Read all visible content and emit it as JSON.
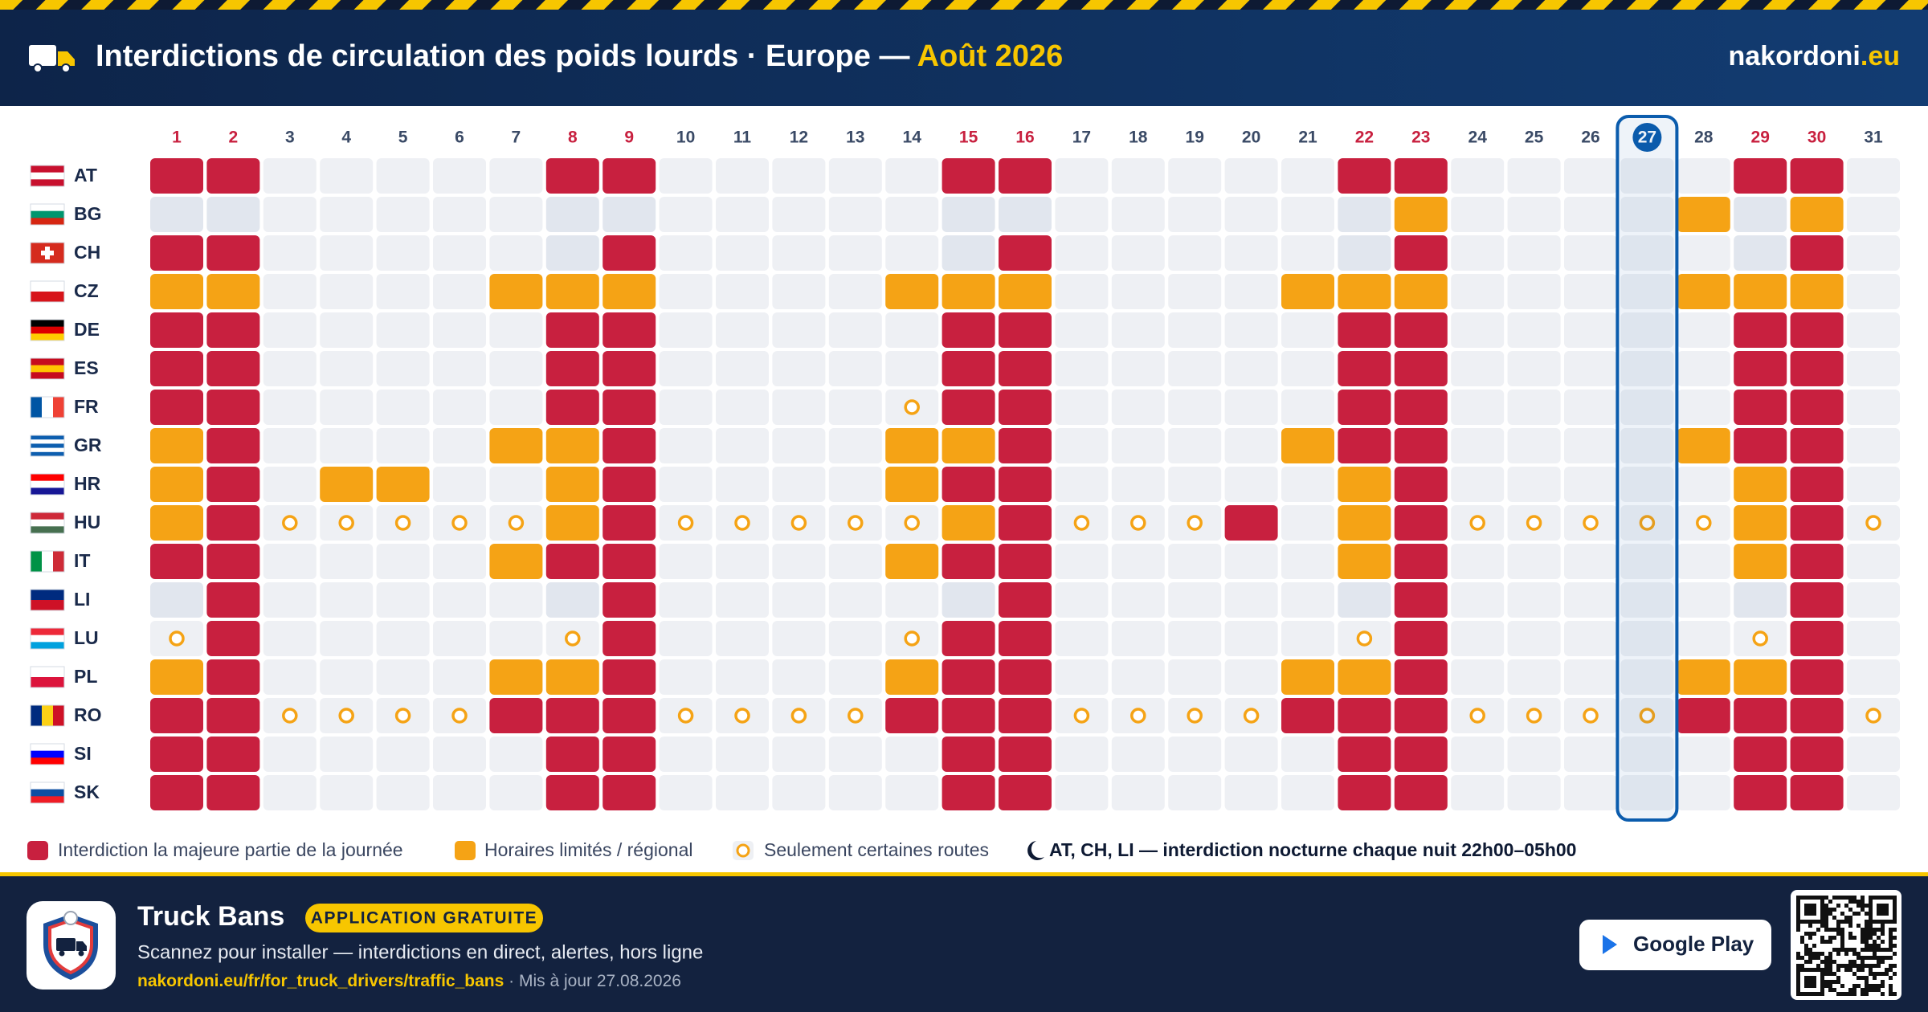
{
  "header": {
    "title": "Interdictions de circulation des poids lourds · Europe —",
    "title_highlight": "Août 2026",
    "brand": "nakordoni",
    "brand_suffix": ".eu"
  },
  "calendar": {
    "days": [
      1,
      2,
      3,
      4,
      5,
      6,
      7,
      8,
      9,
      10,
      11,
      12,
      13,
      14,
      15,
      16,
      17,
      18,
      19,
      20,
      21,
      22,
      23,
      24,
      25,
      26,
      27,
      28,
      29,
      30,
      31
    ],
    "weekend_days": [
      1,
      2,
      8,
      9,
      15,
      16,
      22,
      23,
      29,
      30
    ],
    "today": 27,
    "colors": {
      "R": "#c8203f",
      "O": "#f5a315",
      "s": "#e1e6ee",
      ".": "#eef0f4",
      "ring": "#f5a315",
      "today": "#0b5cad"
    },
    "rows": [
      {
        "code": "AT",
        "flag": [
          "#c8102e",
          "#ffffff",
          "#c8102e"
        ],
        "flag_dir": "h",
        "cells": "RR.....RR.....RR.....RR.....RR."
      },
      {
        "code": "BG",
        "flag": [
          "#ffffff",
          "#00966e",
          "#d62612"
        ],
        "flag_dir": "h",
        "cells": "ss.....ss.....ss.....sO....OsO."
      },
      {
        "code": "CH",
        "flag": [
          "#d52b1e"
        ],
        "flag_dir": "h",
        "cells": "RR.....sR.....sR.....sR.....sR."
      },
      {
        "code": "CZ",
        "flag": [
          "#ffffff",
          "#d7141a"
        ],
        "flag_dir": "h",
        "cells": "OO....OOO....OOO....OOO....OOO."
      },
      {
        "code": "DE",
        "flag": [
          "#000000",
          "#dd0000",
          "#ffce00"
        ],
        "flag_dir": "h",
        "cells": "RR.....RR.....RR.....RR.....RR."
      },
      {
        "code": "ES",
        "flag": [
          "#c60b1e",
          "#ffc400",
          "#c60b1e"
        ],
        "flag_dir": "h",
        "cells": "RR.....RR.....RR.....RR.....RR."
      },
      {
        "code": "FR",
        "flag": [
          "#0055a4",
          "#ffffff",
          "#ef4135"
        ],
        "flag_dir": "v",
        "cells": "RR.....RR....oRR.....RR.....RR."
      },
      {
        "code": "GR",
        "flag": [
          "#0d5eaf",
          "#ffffff",
          "#0d5eaf",
          "#ffffff",
          "#0d5eaf"
        ],
        "flag_dir": "h",
        "cells": "OR....OOR....OOR....ORR....ORR."
      },
      {
        "code": "HR",
        "flag": [
          "#ff0000",
          "#ffffff",
          "#171796"
        ],
        "flag_dir": "h",
        "cells": "OR.OO..OR....ORR.....OR.....OR."
      },
      {
        "code": "HU",
        "flag": [
          "#ce2939",
          "#ffffff",
          "#477050"
        ],
        "flag_dir": "h",
        "cells": "ORoooooORoooooORoooR.ORoooooORo"
      },
      {
        "code": "IT",
        "flag": [
          "#009246",
          "#ffffff",
          "#ce2b37"
        ],
        "flag_dir": "v",
        "cells": "RR....ORR....ORR.....OR.....OR."
      },
      {
        "code": "LI",
        "flag": [
          "#002b7f",
          "#ce1126"
        ],
        "flag_dir": "h",
        "cells": "sR.....sR.....sR.....sR.....sR."
      },
      {
        "code": "LU",
        "flag": [
          "#ed2939",
          "#ffffff",
          "#00a1de"
        ],
        "flag_dir": "h",
        "cells": "oR.....oR....oRR.....oR.....oR."
      },
      {
        "code": "PL",
        "flag": [
          "#ffffff",
          "#dc143c"
        ],
        "flag_dir": "h",
        "cells": "OR....OOR....ORR....OOR....OOR."
      },
      {
        "code": "RO",
        "flag": [
          "#002b7f",
          "#fcd116",
          "#ce1126"
        ],
        "flag_dir": "v",
        "cells": "RRooooRRRooooRRRooooRRRooooRRRo"
      },
      {
        "code": "SI",
        "flag": [
          "#ffffff",
          "#0000ff",
          "#ff0000"
        ],
        "flag_dir": "h",
        "cells": "RR.....RR.....RR.....RR.....RR."
      },
      {
        "code": "SK",
        "flag": [
          "#ffffff",
          "#0b4ea2",
          "#ee1c25"
        ],
        "flag_dir": "h",
        "cells": "RR.....RR.....RR.....RR.....RR."
      }
    ]
  },
  "legend": {
    "ban": "Interdiction la majeure partie de la journée",
    "limited": "Horaires limités / régional",
    "some_roads": "Seulement certaines routes",
    "night": "AT, CH, LI — interdiction nocturne chaque nuit 22h00–05h00"
  },
  "footer": {
    "app_name": "Truck Bans",
    "badge": "APPLICATION GRATUITE",
    "tagline": "Scannez pour installer — interdictions en direct, alertes, hors ligne",
    "url": "nakordoni.eu/fr/for_truck_drivers/traffic_bans",
    "updated": "· Mis à jour 27.08.2026",
    "store": "Google Play"
  }
}
